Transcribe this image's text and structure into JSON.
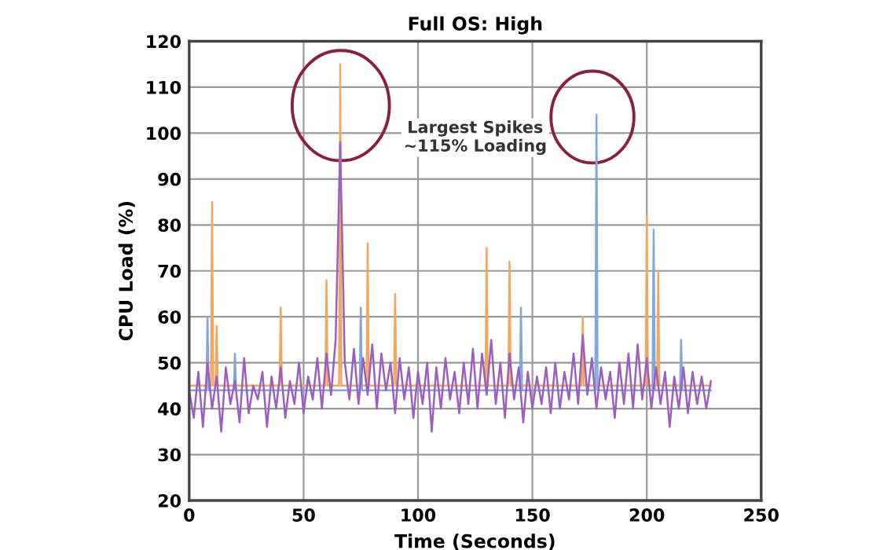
{
  "chart_data": {
    "type": "line",
    "title": "Full OS: High",
    "xlabel": "Time (Seconds)",
    "ylabel": "CPU Load (%)",
    "xlim": [
      0,
      250
    ],
    "xticks": [
      0,
      50,
      100,
      150,
      200,
      250
    ],
    "ylim": [
      20,
      120
    ],
    "yticks": [
      20,
      30,
      40,
      50,
      60,
      70,
      80,
      90,
      100,
      110,
      120
    ],
    "grid": true,
    "marker": "none",
    "line_style": "solid",
    "annotations": [
      "Largest Spikes\n~115% Loading"
    ],
    "series": [
      {
        "color": "#f0a860",
        "x": [
          0,
          9.5,
          10,
          10.5,
          11.5,
          12,
          12.5,
          39.5,
          40,
          40.5,
          59.5,
          60,
          60.5,
          65.5,
          66,
          66.5,
          77.5,
          78,
          78.5,
          89.5,
          90,
          90.5,
          129.5,
          130,
          130.5,
          139.5,
          140,
          140.5,
          171.5,
          172,
          172.5,
          199.5,
          200,
          200.5,
          204.5,
          205,
          205.5,
          228
        ],
        "values": [
          45,
          45,
          85,
          45,
          45,
          58,
          45,
          45,
          62,
          45,
          45,
          68,
          45,
          45,
          115,
          45,
          45,
          76,
          45,
          45,
          65,
          45,
          45,
          75,
          45,
          45,
          72,
          45,
          45,
          60,
          45,
          45,
          82,
          45,
          45,
          70,
          45,
          45
        ]
      },
      {
        "color": "#80a8d8",
        "x": [
          0,
          7.5,
          8,
          8.5,
          19.5,
          20,
          20.5,
          74.5,
          75,
          75.5,
          144.5,
          145,
          145.5,
          177.5,
          178,
          178.5,
          202.5,
          203,
          203.5,
          214.5,
          215,
          215.5,
          228
        ],
        "values": [
          44,
          44,
          60,
          44,
          44,
          52,
          44,
          44,
          62,
          44,
          44,
          62,
          44,
          44,
          104,
          44,
          44,
          79,
          44,
          44,
          55,
          44,
          44
        ]
      },
      {
        "color": "#9b5fc0",
        "x": [
          0,
          2,
          4,
          6,
          8,
          10,
          12,
          14,
          16,
          18,
          20,
          22,
          24,
          26,
          28,
          30,
          32,
          34,
          36,
          38,
          40,
          42,
          44,
          46,
          48,
          50,
          52,
          54,
          56,
          58,
          60,
          62,
          64,
          66,
          68,
          70,
          72,
          74,
          76,
          78,
          80,
          82,
          84,
          86,
          88,
          90,
          92,
          94,
          96,
          98,
          100,
          102,
          104,
          106,
          108,
          110,
          112,
          114,
          116,
          118,
          120,
          122,
          124,
          126,
          128,
          130,
          132,
          134,
          136,
          138,
          140,
          142,
          144,
          146,
          148,
          150,
          152,
          154,
          156,
          158,
          160,
          162,
          164,
          166,
          168,
          170,
          172,
          174,
          176,
          178,
          180,
          182,
          184,
          186,
          188,
          190,
          192,
          194,
          196,
          198,
          200,
          202,
          204,
          206,
          208,
          210,
          212,
          214,
          216,
          218,
          220,
          222,
          224,
          226,
          228
        ],
        "values": [
          44,
          38,
          48,
          36,
          50,
          40,
          47,
          35,
          49,
          41,
          46,
          37,
          51,
          39,
          45,
          42,
          48,
          36,
          47,
          40,
          49,
          38,
          46,
          41,
          50,
          39,
          47,
          42,
          51,
          40,
          52,
          43,
          55,
          98,
          50,
          42,
          53,
          41,
          51,
          43,
          54,
          40,
          52,
          44,
          50,
          39,
          51,
          42,
          49,
          38,
          48,
          41,
          50,
          35,
          49,
          40,
          51,
          42,
          48,
          39,
          50,
          41,
          53,
          40,
          52,
          43,
          55,
          41,
          50,
          38,
          52,
          42,
          49,
          37,
          48,
          40,
          47,
          41,
          49,
          39,
          50,
          40,
          48,
          42,
          52,
          41,
          56,
          43,
          51,
          40,
          49,
          42,
          48,
          38,
          50,
          41,
          52,
          40,
          54,
          42,
          51,
          40,
          49,
          41,
          48,
          36,
          47,
          40,
          49,
          39,
          48,
          41,
          47,
          40,
          46
        ]
      }
    ]
  }
}
